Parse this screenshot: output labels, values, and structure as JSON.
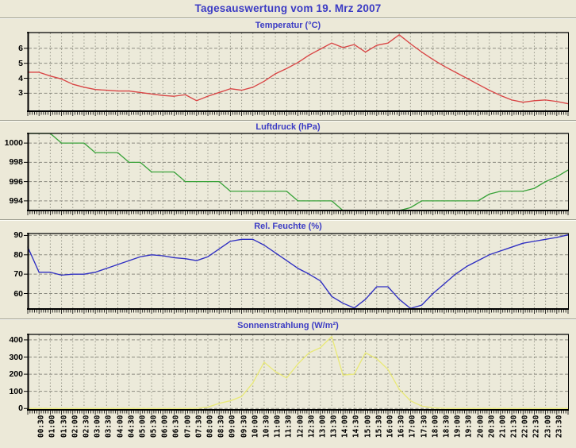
{
  "page_title": "Tagesauswertung vom 19. Mrz 2007",
  "colors": {
    "background": "#ece9d8",
    "plot_background": "#eceada",
    "title_text": "#3b3bc4",
    "grid_vertical": "#9b9b8d",
    "grid_horizontal": "#8b8b80",
    "axis": "#000000",
    "tick_label": "#000000",
    "temperature_line": "#d94545",
    "pressure_line": "#3aa33a",
    "humidity_line": "#2e2ec2",
    "solar_line": "#e9e978"
  },
  "x_axis": {
    "tick_labels": [
      "00:30",
      "01:00",
      "01:30",
      "02:00",
      "02:30",
      "03:00",
      "03:30",
      "04:00",
      "04:30",
      "05:00",
      "05:30",
      "06:00",
      "06:30",
      "07:00",
      "07:30",
      "08:00",
      "08:30",
      "09:00",
      "09:30",
      "10:00",
      "10:30",
      "11:00",
      "11:30",
      "12:00",
      "12:30",
      "13:00",
      "13:30",
      "14:00",
      "14:30",
      "15:00",
      "15:30",
      "16:00",
      "16:30",
      "17:00",
      "17:30",
      "18:00",
      "18:30",
      "19:00",
      "19:30",
      "20:00",
      "20:30",
      "21:00",
      "21:30",
      "22:00",
      "22:30",
      "23:00",
      "23:30"
    ],
    "xlim_hours": [
      0,
      24
    ],
    "tick_step_hours": 0.5
  },
  "chart_data": [
    {
      "type": "line",
      "title": "Temperatur (°C)",
      "line_color": "#d94545",
      "ylim": [
        1.8,
        7.05
      ],
      "yticks": [
        3,
        4,
        5,
        6
      ],
      "x_start_hour": 0,
      "x_step_hours": 0.5,
      "values": [
        4.4,
        4.4,
        4.15,
        3.95,
        3.6,
        3.4,
        3.25,
        3.2,
        3.15,
        3.15,
        3.05,
        2.95,
        2.85,
        2.8,
        2.9,
        2.5,
        2.8,
        3.05,
        3.3,
        3.2,
        3.4,
        3.8,
        4.3,
        4.65,
        5.05,
        5.55,
        5.95,
        6.35,
        6.05,
        6.25,
        5.75,
        6.2,
        6.35,
        6.9,
        6.3,
        5.75,
        5.25,
        4.8,
        4.4,
        4.0,
        3.6,
        3.2,
        2.85,
        2.55,
        2.4,
        2.5,
        2.55,
        2.45,
        2.3
      ]
    },
    {
      "type": "line",
      "title": "Luftdruck (hPa)",
      "line_color": "#3aa33a",
      "ylim": [
        993,
        1001
      ],
      "yticks": [
        994,
        996,
        998,
        1000
      ],
      "x_start_hour": 0,
      "x_step_hours": 0.5,
      "values": [
        1001,
        1001,
        1001,
        1000,
        1000,
        1000,
        999,
        999,
        999,
        998,
        998,
        997,
        997,
        997,
        996,
        996,
        996,
        996,
        995,
        995,
        995,
        995,
        995,
        995,
        994,
        994,
        994,
        994,
        993,
        993,
        993,
        993,
        993,
        993,
        993.3,
        994,
        994,
        994,
        994,
        994,
        994,
        994.7,
        995,
        995,
        995,
        995.3,
        996,
        996.5,
        997.2
      ]
    },
    {
      "type": "line",
      "title": "Rel. Feuchte (%)",
      "line_color": "#2e2ec2",
      "ylim": [
        52,
        91
      ],
      "yticks": [
        60,
        70,
        80,
        90
      ],
      "x_start_hour": 0,
      "x_step_hours": 0.5,
      "values": [
        84,
        71,
        71,
        69.5,
        70,
        70,
        71,
        73,
        75,
        77,
        79,
        80,
        79.5,
        78.5,
        78,
        77,
        79,
        83,
        87,
        88,
        88,
        85,
        81,
        77,
        73,
        70,
        66.5,
        58.5,
        55,
        52.5,
        57,
        63.5,
        63.5,
        57,
        52.3,
        54,
        60,
        65,
        70,
        74,
        77,
        80,
        82,
        84,
        86,
        87,
        88,
        89,
        90.3
      ]
    },
    {
      "type": "line",
      "title": "Sonnenstrahlung (W/m²)",
      "line_color": "#e9e978",
      "ylim": [
        -8,
        432
      ],
      "yticks": [
        0,
        100,
        200,
        300,
        400
      ],
      "x_start_hour": 0,
      "x_step_hours": 0.5,
      "values": [
        0,
        0,
        0,
        0,
        0,
        0,
        0,
        0,
        0,
        0,
        0,
        0,
        0,
        0,
        0,
        1,
        8,
        30,
        45,
        70,
        150,
        270,
        215,
        178,
        260,
        325,
        355,
        420,
        195,
        200,
        325,
        290,
        228,
        112,
        45,
        14,
        4,
        1,
        0,
        0,
        0,
        0,
        0,
        0,
        0,
        0,
        0,
        0,
        0
      ]
    }
  ]
}
